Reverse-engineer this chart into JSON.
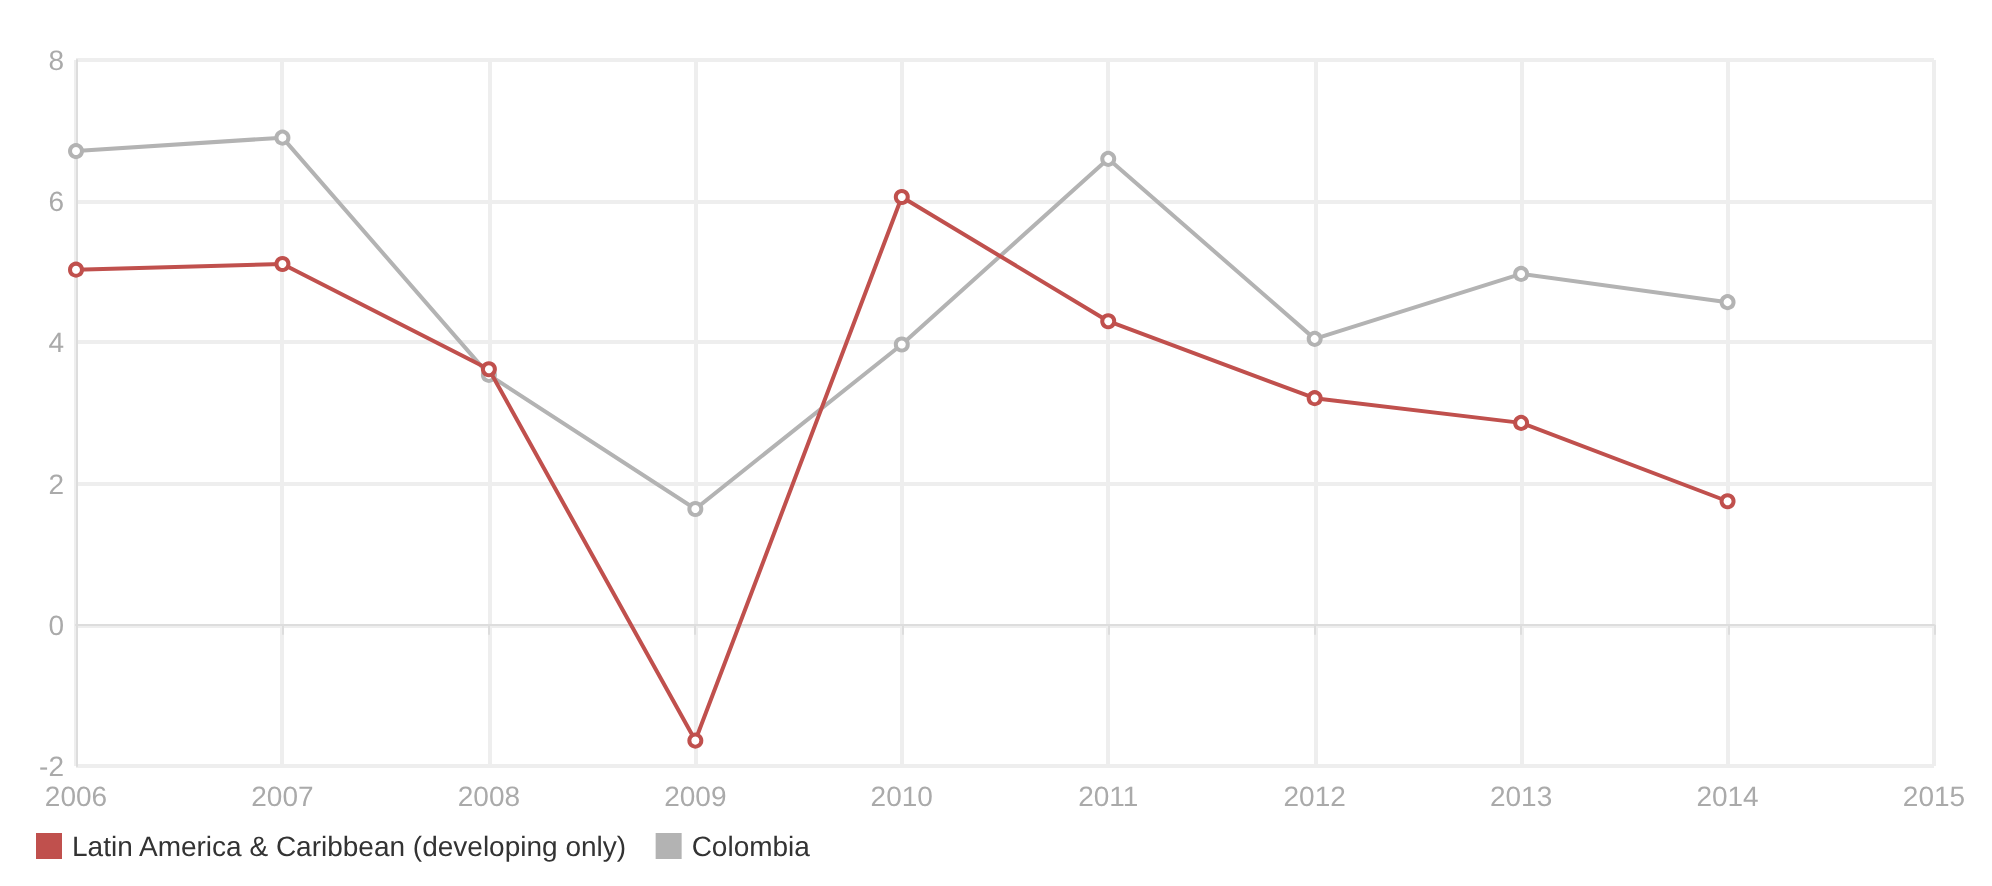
{
  "chart_data": {
    "type": "line",
    "x": [
      2006,
      2007,
      2008,
      2009,
      2010,
      2011,
      2012,
      2013,
      2014
    ],
    "series": [
      {
        "name": "Latin America & Caribbean (developing only)",
        "color": "#c0504d",
        "values": [
          5.03,
          5.11,
          3.62,
          -1.64,
          6.06,
          4.3,
          3.21,
          2.86,
          1.75
        ]
      },
      {
        "name": "Colombia",
        "color": "#b3b3b3",
        "values": [
          6.71,
          6.9,
          3.54,
          1.64,
          3.97,
          6.6,
          4.05,
          4.97,
          4.57
        ]
      }
    ],
    "xlim": [
      2006,
      2015
    ],
    "xticks": [
      2006,
      2007,
      2008,
      2009,
      2010,
      2011,
      2012,
      2013,
      2014,
      2015
    ],
    "ylim": [
      -2,
      8
    ],
    "yticks": [
      -2,
      0,
      2,
      4,
      6,
      8
    ],
    "grid": true,
    "legend": "bottom left",
    "marker": "circle",
    "line_style": "solid"
  }
}
